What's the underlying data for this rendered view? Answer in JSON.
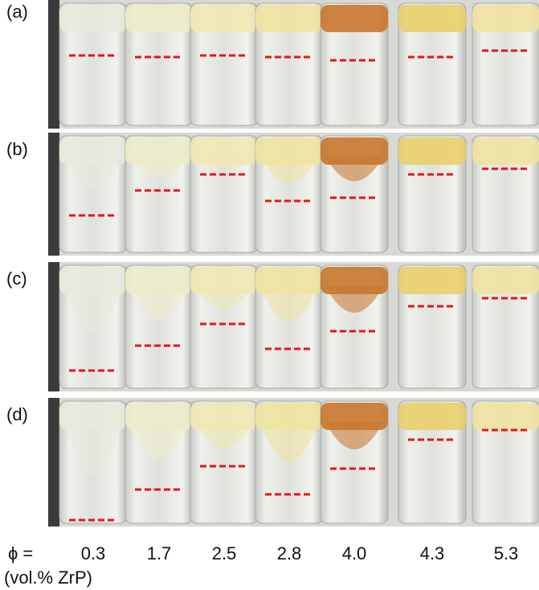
{
  "panels": [
    {
      "label": "(a)"
    },
    {
      "label": "(b)"
    },
    {
      "label": "(c)"
    },
    {
      "label": "(d)"
    }
  ],
  "phi_label": "ϕ =",
  "concentrations": [
    "0.3",
    "1.7",
    "2.5",
    "2.8",
    "4.0",
    "4.3",
    "5.3"
  ],
  "unit_label": "(vol.% ZrP)"
}
